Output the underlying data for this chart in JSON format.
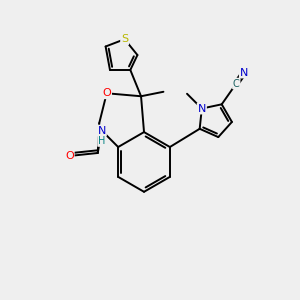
{
  "background_color": "#efefef",
  "bond_color": "#000000",
  "atom_colors": {
    "S": "#b8b800",
    "O": "#ff0000",
    "N": "#0000cc",
    "C": "#1a6060",
    "H": "#008080"
  },
  "figsize": [
    3.0,
    3.0
  ],
  "dpi": 100
}
